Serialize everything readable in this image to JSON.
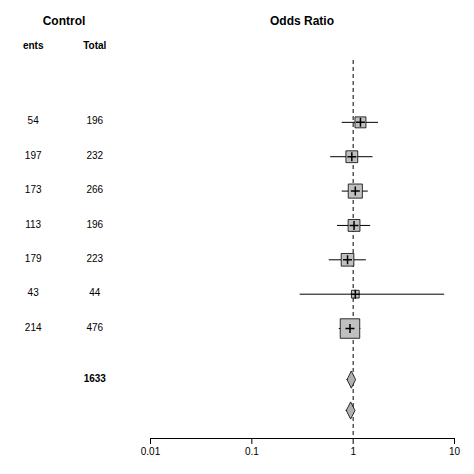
{
  "chart_data": {
    "type": "forest",
    "title": "Odds Ratio",
    "table_header": "Control",
    "columns": [
      "ents",
      "Total"
    ],
    "events": [
      54,
      197,
      173,
      113,
      179,
      43,
      214
    ],
    "totals": [
      196,
      232,
      266,
      196,
      223,
      44,
      476
    ],
    "total": 1633,
    "values": [
      1.18,
      0.97,
      1.05,
      1.02,
      0.88,
      1.05,
      0.93
    ],
    "ci_lower": [
      0.78,
      0.6,
      0.78,
      0.7,
      0.58,
      0.3,
      0.73
    ],
    "ci_upper": [
      1.78,
      1.57,
      1.41,
      1.49,
      1.35,
      8.0,
      1.19
    ],
    "sizes": [
      120,
      140,
      200,
      140,
      160,
      60,
      380
    ],
    "color": "#c0c0c0",
    "summaries": [
      {
        "value": 0.97,
        "lower": 0.88,
        "upper": 1.07
      },
      {
        "value": 0.955,
        "lower": 0.865,
        "upper": 1.055
      }
    ],
    "summary_color": "#b0b0b0",
    "reference_line": 1.0,
    "log": "x",
    "xlim": [
      0.01,
      10
    ],
    "xticks": [
      0.01,
      0.1,
      1,
      10
    ],
    "grid": false
  }
}
